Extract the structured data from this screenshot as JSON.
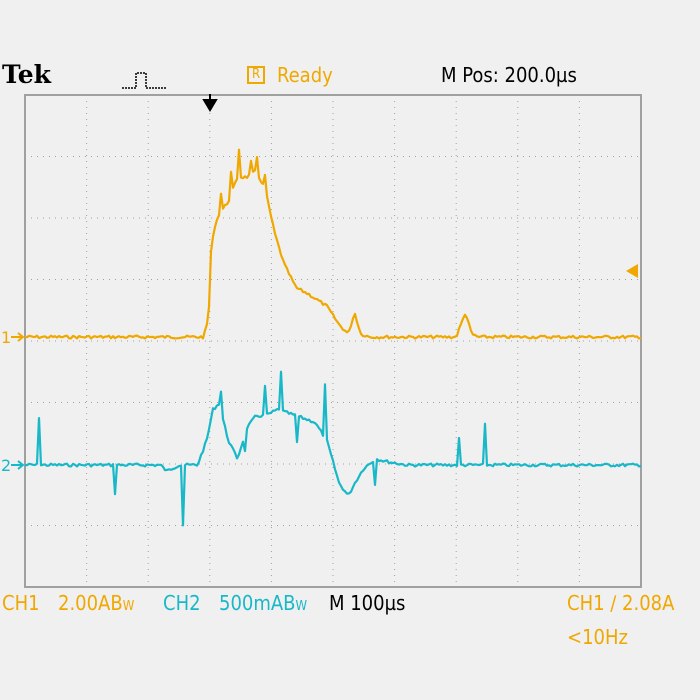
{
  "header": {
    "brand": "Tek",
    "acq_icon": "pulse-icon",
    "status_box": "R",
    "status": "Ready",
    "m_pos": "M Pos: 200.0µs"
  },
  "footer": {
    "ch1_label": "CH1",
    "ch1_scale": "2.00AB",
    "ch1_bw": "W",
    "ch2_label": "CH2",
    "ch2_scale": "500mAB",
    "ch2_bw": "W",
    "timebase": "M 100µs",
    "trigger": "CH1 ∕ 2.08A",
    "trigger_freq": "<10Hz"
  },
  "markers": {
    "ch1": "1",
    "ch2": "2"
  },
  "colors": {
    "ch1": "#f0a800",
    "ch2": "#18b8c8",
    "background": "#f0f0f0",
    "grid": "#a0a0a0"
  },
  "chart_data": {
    "type": "line",
    "xlim_div": [
      0,
      10
    ],
    "ylim_div": [
      -4,
      4
    ],
    "x_unit": "div (100µs/div)",
    "grid": true,
    "series": [
      {
        "name": "CH1",
        "scale_per_div": "2.00A",
        "x": [
          0,
          2.9,
          2.98,
          3.02,
          3.08,
          3.15,
          3.3,
          3.45,
          3.6,
          3.75,
          3.9,
          4.05,
          4.2,
          4.4,
          4.6,
          4.9,
          5.1,
          5.25,
          5.35,
          5.45,
          5.6,
          5.8,
          7.0,
          7.15,
          7.25,
          7.35,
          10
        ],
        "y": [
          0,
          0,
          0.3,
          1.4,
          1.8,
          2.0,
          2.2,
          2.6,
          2.6,
          2.7,
          2.4,
          1.7,
          1.2,
          0.8,
          0.7,
          0.5,
          0.2,
          0.05,
          0.4,
          0.05,
          0,
          0,
          0,
          0.4,
          0.05,
          0,
          0
        ]
      },
      {
        "name": "CH2",
        "scale_per_div": "500mA",
        "x": [
          0,
          2.2,
          2.3,
          2.5,
          2.8,
          2.95,
          3.05,
          3.15,
          3.3,
          3.45,
          3.6,
          3.75,
          3.9,
          4.1,
          4.4,
          4.7,
          4.9,
          5.1,
          5.25,
          5.35,
          5.5,
          5.7,
          5.9,
          6.2,
          10
        ],
        "y": [
          0,
          0,
          -0.1,
          0,
          0,
          0.4,
          0.9,
          1.0,
          0.4,
          0.1,
          0.6,
          0.8,
          0.8,
          0.9,
          0.8,
          0.7,
          0.4,
          -0.3,
          -0.5,
          -0.3,
          -0.05,
          0.1,
          0.05,
          0,
          0
        ]
      }
    ]
  }
}
